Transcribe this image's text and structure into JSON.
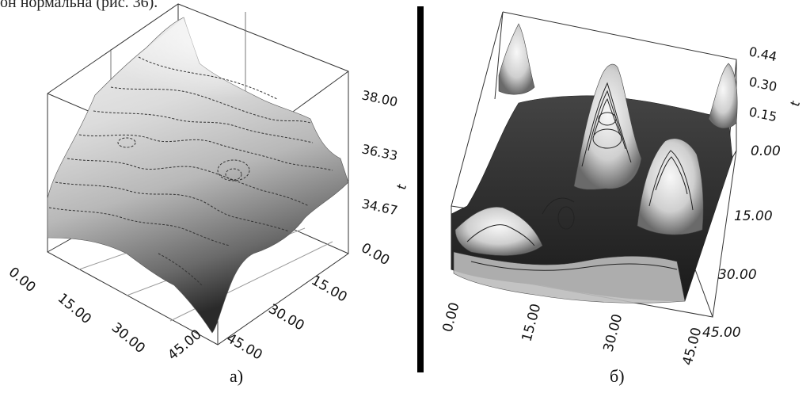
{
  "header_fragment": "он нормальна (рис. 36).",
  "chart_data": [
    {
      "type": "surface3d",
      "caption": "а)",
      "zlabel": "t",
      "z_ticks": [
        "38.00",
        "36.33",
        "34.67"
      ],
      "x_ticks": [
        "0.00",
        "15.00",
        "30.00",
        "45.00"
      ],
      "y_ticks": [
        "0.00",
        "15.00",
        "30.00",
        "45.00"
      ],
      "zlim": [
        34.67,
        38.0
      ],
      "xlim": [
        0,
        45
      ],
      "ylim": [
        0,
        45
      ],
      "contours": true,
      "colormap": "grayscale"
    },
    {
      "type": "surface3d",
      "caption": "б)",
      "zlabel": "t",
      "z_ticks": [
        "0.44",
        "0.30",
        "0.15",
        "0.00"
      ],
      "x_ticks": [
        "0.00",
        "15.00",
        "30.00",
        "45.00"
      ],
      "y_ticks": [
        "15.00",
        "30.00",
        "45.00"
      ],
      "zlim": [
        0.0,
        0.44
      ],
      "xlim": [
        0,
        45
      ],
      "ylim": [
        0,
        45
      ],
      "contours": true,
      "colormap": "grayscale"
    }
  ]
}
